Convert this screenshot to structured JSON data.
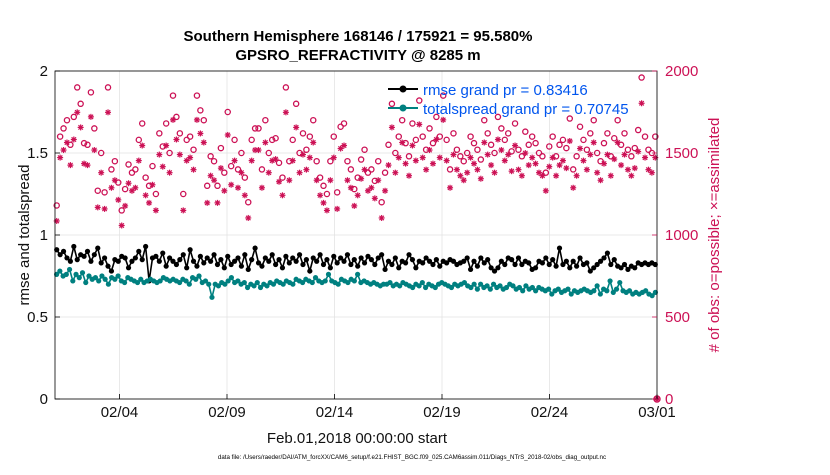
{
  "chart_data": {
    "type": "line",
    "title_line1": "Southern Hemisphere 168146 / 175921 = 95.580%",
    "title_line2": "GPSRO_REFRACTIVITY @ 8285 m",
    "xlabel": "Feb.01,2018 00:00:00 start",
    "ylabel_left": "rmse and totalspread",
    "ylabel_right": "# of obs: o=possible; ×=assimilated",
    "footer": "data file: /Users/raeder/DAI/ATM_forcXX/CAM6_setup/f.e21.FHIST_BGC.f09_025.CAM6assim.011/Diags_NTrS_2018-02/obs_diag_output.nc",
    "x_range": [
      1,
      29
    ],
    "x_ticks": [
      {
        "x": 4,
        "label": "02/04"
      },
      {
        "x": 9,
        "label": "02/09"
      },
      {
        "x": 14,
        "label": "02/14"
      },
      {
        "x": 19,
        "label": "02/19"
      },
      {
        "x": 24,
        "label": "02/24"
      },
      {
        "x": 29,
        "label": "03/01"
      }
    ],
    "ylim_left": [
      0,
      2
    ],
    "y_ticks_left": [
      "0",
      "0.5",
      "1",
      "1.5",
      "2"
    ],
    "ylim_right": [
      0,
      2000
    ],
    "y_ticks_right": [
      "0",
      "500",
      "1000",
      "1500",
      "2000"
    ],
    "legend": [
      {
        "name": "rmse grand pr = 0.83416",
        "color": "#000000"
      },
      {
        "name": "totalspread grand pr = 0.70745",
        "color": "#008080"
      }
    ],
    "legend_text_color": "#0055ee",
    "right_axis_color": "#cc1155",
    "grid": true,
    "series": [
      {
        "name": "rmse",
        "color": "#000000",
        "values": [
          0.91,
          0.88,
          0.9,
          0.86,
          0.84,
          0.93,
          0.85,
          0.88,
          0.87,
          0.9,
          0.84,
          0.88,
          0.92,
          0.83,
          0.86,
          0.81,
          0.78,
          0.85,
          0.84,
          0.87,
          0.86,
          0.8,
          0.84,
          0.86,
          0.9,
          0.85,
          0.93,
          0.72,
          0.86,
          0.87,
          0.84,
          0.89,
          0.81,
          0.86,
          0.84,
          0.82,
          0.85,
          0.88,
          0.8,
          0.91,
          0.84,
          0.81,
          0.87,
          0.83,
          0.86,
          0.84,
          0.88,
          0.82,
          0.85,
          0.8,
          0.87,
          0.82,
          0.84,
          0.86,
          0.81,
          0.88,
          0.79,
          0.85,
          0.92,
          0.83,
          0.81,
          0.86,
          0.84,
          0.88,
          0.82,
          0.85,
          0.8,
          0.87,
          0.83,
          0.86,
          0.84,
          0.88,
          0.82,
          0.85,
          0.78,
          0.86,
          0.84,
          0.88,
          0.82,
          0.85,
          0.8,
          0.87,
          0.83,
          0.86,
          0.84,
          0.88,
          0.82,
          0.85,
          0.81,
          0.86,
          0.83,
          0.87,
          0.85,
          0.82,
          0.86,
          0.88,
          0.79,
          0.84,
          0.82,
          0.86,
          0.8,
          0.84,
          0.83,
          0.88,
          0.85,
          0.8,
          0.84,
          0.83,
          0.86,
          0.84,
          0.82,
          0.85,
          0.81,
          0.84,
          0.83,
          0.85,
          0.84,
          0.82,
          0.83,
          0.84,
          0.86,
          0.79,
          0.84,
          0.81,
          0.86,
          0.83,
          0.85,
          0.8,
          0.78,
          0.8,
          0.84,
          0.82,
          0.86,
          0.85,
          0.82,
          0.86,
          0.82,
          0.84,
          0.83,
          0.79,
          0.8,
          0.84,
          0.83,
          0.86,
          0.82,
          0.85,
          0.81,
          0.92,
          0.82,
          0.84,
          0.8,
          0.84,
          0.81,
          0.86,
          0.82,
          0.83,
          0.78,
          0.8,
          0.82,
          0.84,
          0.86,
          0.89,
          0.82,
          0.85,
          0.81,
          0.8,
          0.82,
          0.79,
          0.81,
          0.8,
          0.83,
          0.82,
          0.83,
          0.82,
          0.83,
          0.82
        ]
      },
      {
        "name": "totalspread",
        "color": "#008080",
        "values": [
          0.76,
          0.78,
          0.75,
          0.76,
          0.79,
          0.72,
          0.76,
          0.74,
          0.77,
          0.71,
          0.75,
          0.73,
          0.74,
          0.72,
          0.75,
          0.73,
          0.7,
          0.74,
          0.73,
          0.75,
          0.72,
          0.71,
          0.74,
          0.73,
          0.72,
          0.71,
          0.73,
          0.71,
          0.72,
          0.73,
          0.72,
          0.71,
          0.72,
          0.74,
          0.73,
          0.72,
          0.73,
          0.72,
          0.71,
          0.73,
          0.72,
          0.7,
          0.74,
          0.73,
          0.75,
          0.71,
          0.72,
          0.7,
          0.62,
          0.7,
          0.69,
          0.71,
          0.7,
          0.72,
          0.74,
          0.71,
          0.72,
          0.7,
          0.71,
          0.68,
          0.7,
          0.69,
          0.71,
          0.68,
          0.7,
          0.69,
          0.71,
          0.7,
          0.72,
          0.71,
          0.7,
          0.72,
          0.71,
          0.7,
          0.73,
          0.72,
          0.71,
          0.73,
          0.72,
          0.71,
          0.74,
          0.72,
          0.71,
          0.72,
          0.76,
          0.72,
          0.71,
          0.7,
          0.73,
          0.72,
          0.71,
          0.73,
          0.72,
          0.76,
          0.71,
          0.72,
          0.71,
          0.7,
          0.71,
          0.7,
          0.69,
          0.7,
          0.7,
          0.71,
          0.69,
          0.7,
          0.69,
          0.71,
          0.7,
          0.69,
          0.68,
          0.7,
          0.69,
          0.71,
          0.68,
          0.7,
          0.69,
          0.68,
          0.7,
          0.71,
          0.7,
          0.69,
          0.68,
          0.7,
          0.69,
          0.7,
          0.71,
          0.69,
          0.68,
          0.7,
          0.67,
          0.7,
          0.68,
          0.69,
          0.67,
          0.7,
          0.68,
          0.69,
          0.67,
          0.68,
          0.7,
          0.69,
          0.67,
          0.68,
          0.66,
          0.69,
          0.67,
          0.68,
          0.66,
          0.68,
          0.67,
          0.66,
          0.67,
          0.64,
          0.66,
          0.67,
          0.65,
          0.66,
          0.67,
          0.64,
          0.66,
          0.65,
          0.66,
          0.67,
          0.66,
          0.65,
          0.66,
          0.69,
          0.64,
          0.67,
          0.66,
          0.72,
          0.65,
          0.67,
          0.71,
          0.66,
          0.65,
          0.66,
          0.64,
          0.65,
          0.64,
          0.65,
          0.66,
          0.64,
          0.63,
          0.65
        ]
      }
    ],
    "obs_possible": [
      1180,
      1600,
      1650,
      1700,
      1550,
      1720,
      1900,
      1800,
      1560,
      1550,
      1870,
      1650,
      1270,
      1500,
      1260,
      1900,
      1400,
      1450,
      1320,
      1150,
      1280,
      1430,
      1380,
      1400,
      1580,
      1680,
      1350,
      1300,
      1420,
      1250,
      1620,
      1540,
      1680,
      1500,
      1850,
      1720,
      1620,
      1250,
      1580,
      1600,
      1520,
      1850,
      1760,
      1700,
      1300,
      1480,
      1450,
      1300,
      1530,
      1380,
      1750,
      1420,
      1580,
      1400,
      1500,
      1350,
      1200,
      1580,
      1650,
      1650,
      1400,
      1700,
      1500,
      1580,
      1590,
      1440,
      1350,
      1900,
      1450,
      1580,
      1800,
      1500,
      1620,
      1520,
      1600,
      1700,
      1450,
      1350,
      1300,
      1250,
      1450,
      1600,
      1260,
      1660,
      1680,
      1450,
      1400,
      1280,
      1350,
      1460,
      1520,
      1380,
      1400,
      1330,
      1450,
      1200,
      1380,
      1550,
      1800,
      1500,
      1600,
      1700,
      1560,
      1480,
      1680,
      1580,
      1820,
      1600,
      1520,
      1650,
      1560,
      1720,
      1600,
      1850,
      1580,
      1400,
      1620,
      1520,
      1480,
      1450,
      1500,
      1600,
      1560,
      1520,
      1460,
      1700,
      1620,
      1550,
      1500,
      1720,
      1650,
      1580,
      1620,
      1510,
      1680,
      1520,
      1480,
      1630,
      1550,
      1600,
      1560,
      1500,
      1480,
      1380,
      1540,
      1600,
      1480,
      1550,
      1580,
      1530,
      1710,
      1400,
      1480,
      1660,
      1580,
      1520,
      1620,
      1700,
      1500,
      1450,
      1560,
      1620,
      1480,
      1590,
      1700,
      1550,
      1620,
      1520,
      1480,
      1530,
      1640,
      1960,
      1600,
      1520,
      1500,
      1600
    ]
  }
}
